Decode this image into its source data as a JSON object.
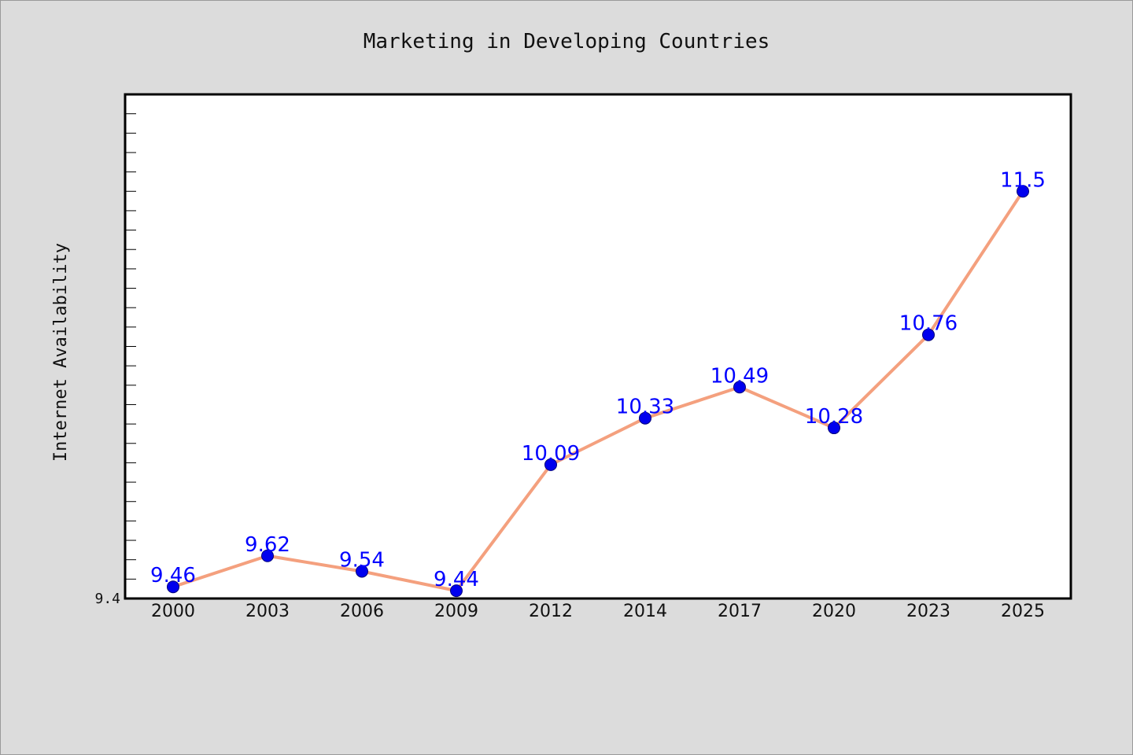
{
  "chart_data": {
    "type": "line",
    "title": "Marketing in Developing Countries",
    "xlabel": "",
    "ylabel": "Internet Availability",
    "categories": [
      "2000",
      "2003",
      "2006",
      "2009",
      "2012",
      "2014",
      "2017",
      "2020",
      "2023",
      "2025"
    ],
    "series": [
      {
        "values": [
          9.46,
          9.62,
          9.54,
          9.44,
          10.09,
          10.33,
          10.49,
          10.28,
          10.76,
          11.5
        ],
        "data_labels": [
          "9.46",
          "9.62",
          "9.54",
          "9.44",
          "10.09",
          "10.33",
          "10.49",
          "10.28",
          "10.76",
          "11.5"
        ]
      }
    ],
    "ylim": [
      9.4,
      12.0
    ],
    "y_tick_labels": [
      {
        "value": 9.4,
        "label": "9.4"
      }
    ],
    "y_minor_tick_step": 0.1,
    "grid": false,
    "legend": "none",
    "colors": {
      "background": "#dcdcdc",
      "plot_background": "#ffffff",
      "line": "#f4a07e",
      "marker": "#0000ee",
      "data_label": "#0000ff",
      "axes": "#000000"
    }
  }
}
